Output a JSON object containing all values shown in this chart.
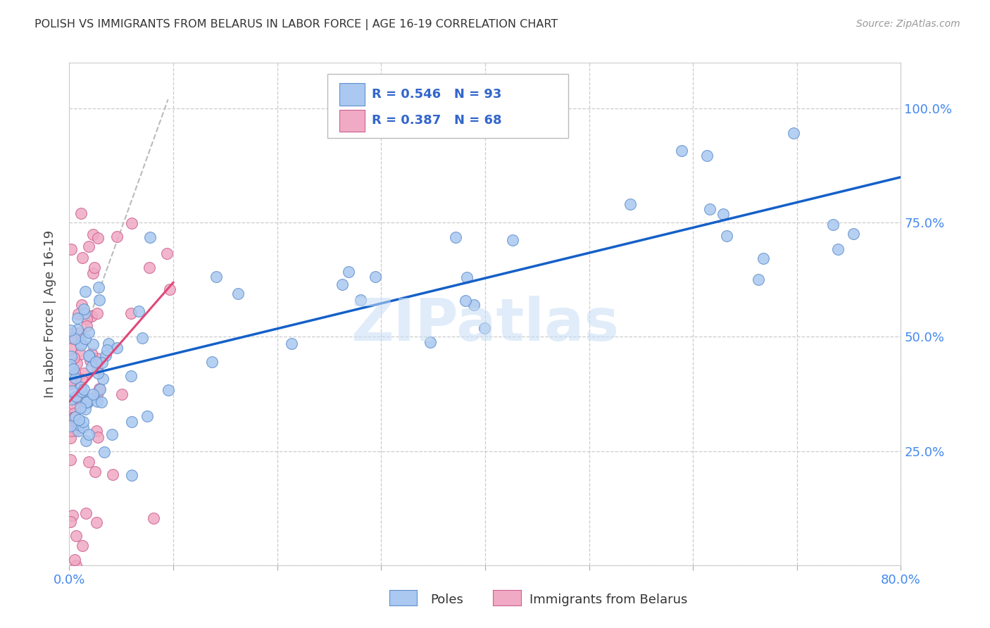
{
  "title": "POLISH VS IMMIGRANTS FROM BELARUS IN LABOR FORCE | AGE 16-19 CORRELATION CHART",
  "source": "Source: ZipAtlas.com",
  "ylabel": "In Labor Force | Age 16-19",
  "xlim": [
    0.0,
    0.8
  ],
  "ylim": [
    0.0,
    1.1
  ],
  "poles_color": "#aac8f0",
  "belarus_color": "#f0aac4",
  "poles_edge": "#6090cc",
  "belarus_edge": "#cc6090",
  "regression_blue": "#1460c8",
  "regression_pink": "#e04878",
  "r_poles": 0.546,
  "n_poles": 93,
  "r_belarus": 0.387,
  "n_belarus": 68,
  "watermark": "ZIPatlas",
  "bg_color": "#ffffff",
  "grid_color": "#cccccc",
  "title_color": "#333333",
  "legend_text_color": "#3366cc",
  "axis_tick_color": "#4488ee"
}
